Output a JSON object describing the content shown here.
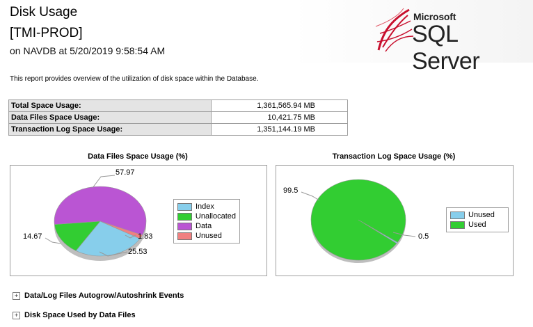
{
  "header": {
    "title": "Disk Usage",
    "server": "[TMI-PROD]",
    "subtitle": "on NAVDB at 5/20/2019 9:58:54 AM"
  },
  "logo": {
    "microsoft": "Microsoft",
    "product": "SQL Server"
  },
  "description": "This report provides overview of the utilization of disk space within the Database.",
  "summary": [
    {
      "label": "Total Space Usage:",
      "value": "1,361,565.94 MB"
    },
    {
      "label": "Data Files Space Usage:",
      "value": "10,421.75 MB"
    },
    {
      "label": "Transaction Log Space Usage:",
      "value": "1,351,144.19 MB"
    }
  ],
  "chart_data": [
    {
      "type": "pie",
      "title": "Data Files Space Usage (%)",
      "categories": [
        "Index",
        "Unallocated",
        "Data",
        "Unused"
      ],
      "values": [
        25.53,
        14.67,
        57.97,
        1.83
      ],
      "colors": [
        "#87ceeb",
        "#32cd32",
        "#ba55d3",
        "#f08080"
      ],
      "legend": "right"
    },
    {
      "type": "pie",
      "title": "Transaction Log Space Usage (%)",
      "categories": [
        "Unused",
        "Used"
      ],
      "values": [
        0.5,
        99.5
      ],
      "colors": [
        "#87ceeb",
        "#32cd32"
      ],
      "legend": "right"
    }
  ],
  "sections": [
    {
      "label": "Data/Log Files Autogrow/Autoshrink Events",
      "toggle": "+"
    },
    {
      "label": "Disk Space Used by Data Files",
      "toggle": "+"
    }
  ]
}
